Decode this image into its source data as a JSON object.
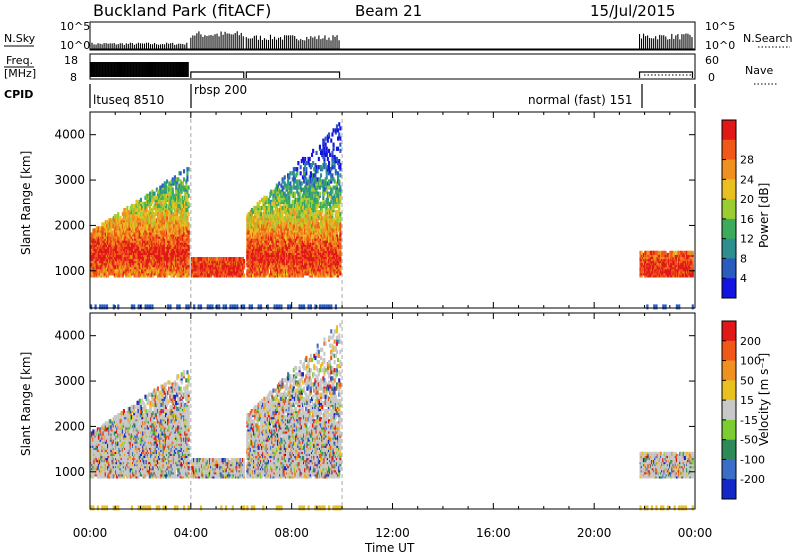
{
  "header": {
    "title": "Buckland Park (fitACF)",
    "beam": "Beam 21",
    "date": "15/Jul/2015"
  },
  "top_panels": {
    "nsky_label": "N.Sky",
    "nsearch_label": "N.Search",
    "nsky_ticks": [
      "10^5",
      "10^0"
    ],
    "nsearch_ticks": [
      "10^5",
      "10^0"
    ],
    "freq_label_1": "Freq.",
    "freq_label_2": "[MHz]",
    "freq_ticks": [
      "18",
      "8"
    ],
    "nave_label": "Nave",
    "nave_ticks": [
      "60",
      "0"
    ],
    "cpid_label": "CPID",
    "cpid_segments": [
      "ltuseq 8510",
      "rbsp 200",
      "normal (fast) 151"
    ]
  },
  "chart_data": [
    {
      "type": "heatmap",
      "name": "power-panel",
      "ylabel": "Slant Range [km]",
      "xlabel": "Time UT",
      "x_ticks": [
        "00:00",
        "04:00",
        "08:00",
        "12:00",
        "16:00",
        "20:00",
        "00:00"
      ],
      "x_range_hours": [
        0,
        24
      ],
      "y_ticks": [
        1000,
        2000,
        3000,
        4000
      ],
      "ylim": [
        180,
        4500
      ],
      "colorbar": {
        "label": "Power [dB]",
        "ticks": [
          "4",
          "8",
          "12",
          "16",
          "20",
          "24",
          "28"
        ],
        "colors": [
          "#1414e0",
          "#2a5cc0",
          "#2f8f8f",
          "#3cab5c",
          "#9acd32",
          "#e8c020",
          "#f09020",
          "#f05818",
          "#e01818"
        ]
      },
      "echo_regions": [
        {
          "t0": 0.0,
          "t1": 3.9,
          "r0": 900,
          "r1": 3300,
          "core": 1400
        },
        {
          "t0": 4.0,
          "t1": 6.1,
          "r0": 900,
          "r1": 1300,
          "core": 1100
        },
        {
          "t0": 6.2,
          "t1": 9.9,
          "r0": 900,
          "r1": 4300,
          "core": 1300
        },
        {
          "t0": 21.8,
          "t1": 23.9,
          "r0": 900,
          "r1": 1400,
          "core": 1050
        }
      ]
    },
    {
      "type": "heatmap",
      "name": "velocity-panel",
      "ylabel": "Slant Range [km]",
      "xlabel": "Time UT",
      "x_ticks": [
        "00:00",
        "04:00",
        "08:00",
        "12:00",
        "16:00",
        "20:00",
        "00:00"
      ],
      "x_range_hours": [
        0,
        24
      ],
      "y_ticks": [
        1000,
        2000,
        3000,
        4000
      ],
      "ylim": [
        180,
        4500
      ],
      "colorbar": {
        "label": "Velocity [m s⁻¹]",
        "ticks": [
          "200",
          "100",
          "50",
          "15",
          "-15",
          "-50",
          "-100",
          "-200"
        ],
        "colors": [
          "#1428c8",
          "#3c6ec8",
          "#2e8b57",
          "#7ccd32",
          "#c8c8c8",
          "#e8c020",
          "#f09020",
          "#f05818",
          "#e01818"
        ]
      },
      "echo_regions": [
        {
          "t0": 0.0,
          "t1": 3.9,
          "r0": 900,
          "r1": 3300,
          "core": 1400
        },
        {
          "t0": 4.0,
          "t1": 6.1,
          "r0": 900,
          "r1": 1300,
          "core": 1100
        },
        {
          "t0": 6.2,
          "t1": 9.9,
          "r0": 900,
          "r1": 4300,
          "core": 1300
        },
        {
          "t0": 21.8,
          "t1": 23.9,
          "r0": 900,
          "r1": 1400,
          "core": 1050
        }
      ]
    }
  ]
}
